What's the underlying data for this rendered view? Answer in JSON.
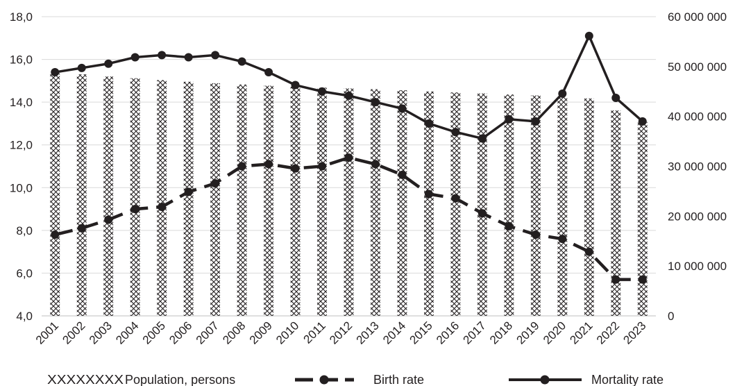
{
  "chart_data": {
    "type": "bar",
    "title": "",
    "categories": [
      "2001",
      "2002",
      "2003",
      "2004",
      "2005",
      "2006",
      "2007",
      "2008",
      "2009",
      "2010",
      "2011",
      "2012",
      "2013",
      "2014",
      "2015",
      "2016",
      "2017",
      "2018",
      "2019",
      "2020",
      "2021",
      "2022",
      "2023"
    ],
    "series": [
      {
        "name": "Population, persons",
        "type": "bar",
        "axis": "right",
        "pattern": "crosshatch",
        "values": [
          48900000,
          48450000,
          48000000,
          47650000,
          47300000,
          46950000,
          46650000,
          46400000,
          46150000,
          45950000,
          45750000,
          45600000,
          45450000,
          45250000,
          45000000,
          44800000,
          44600000,
          44400000,
          44200000,
          43950000,
          43600000,
          41200000,
          38900000
        ]
      },
      {
        "name": "Birth rate",
        "type": "line",
        "axis": "left",
        "style": "dashed",
        "values": [
          7.8,
          8.1,
          8.5,
          9.0,
          9.1,
          9.8,
          10.2,
          11.0,
          11.1,
          10.9,
          11.0,
          11.4,
          11.1,
          10.6,
          9.7,
          9.5,
          8.8,
          8.2,
          7.8,
          7.6,
          7.0,
          5.7,
          5.7
        ]
      },
      {
        "name": "Mortality rate",
        "type": "line",
        "axis": "left",
        "style": "solid",
        "values": [
          15.4,
          15.6,
          15.8,
          16.1,
          16.2,
          16.1,
          16.2,
          15.9,
          15.4,
          14.8,
          14.5,
          14.3,
          14.0,
          13.7,
          13.0,
          12.6,
          12.3,
          13.2,
          13.1,
          14.4,
          17.1,
          14.2,
          13.1
        ]
      }
    ],
    "y_left": {
      "min": 4,
      "max": 18,
      "step": 2,
      "tick_labels": [
        "4,0",
        "6,0",
        "8,0",
        "10,0",
        "12,0",
        "14,0",
        "16,0",
        "18,0"
      ]
    },
    "y_right": {
      "min": 0,
      "max": 60000000,
      "step": 10000000,
      "tick_labels": [
        "0",
        "10 000 000",
        "20 000 000",
        "30 000 000",
        "40 000 000",
        "50 000 000",
        "60 000 000"
      ]
    },
    "xlabel": "",
    "ylabel": "",
    "grid": "horizontal",
    "legend": {
      "position": "bottom",
      "pattern_swatch": "XXXXXXXX",
      "items": [
        "Population, persons",
        "Birth rate",
        "Mortality rate"
      ]
    },
    "colors": {
      "ink": "#231f20",
      "grid": "#d9d9d9"
    }
  }
}
